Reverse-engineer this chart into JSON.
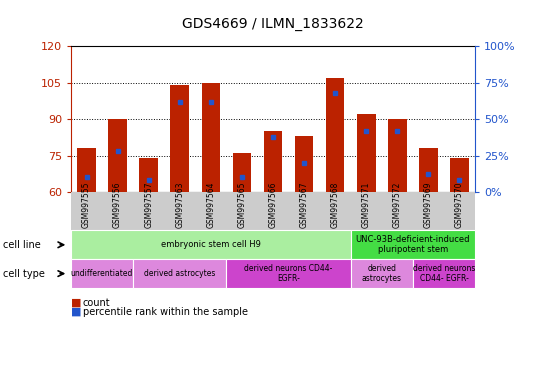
{
  "title": "GDS4669 / ILMN_1833622",
  "samples": [
    "GSM997555",
    "GSM997556",
    "GSM997557",
    "GSM997563",
    "GSM997564",
    "GSM997565",
    "GSM997566",
    "GSM997567",
    "GSM997568",
    "GSM997571",
    "GSM997572",
    "GSM997569",
    "GSM997570"
  ],
  "counts": [
    78,
    90,
    74,
    104,
    105,
    76,
    85,
    83,
    107,
    92,
    90,
    78,
    74
  ],
  "percentiles": [
    10,
    28,
    8,
    62,
    62,
    10,
    38,
    20,
    68,
    42,
    42,
    12,
    8
  ],
  "ylim_left": [
    60,
    120
  ],
  "yticks_left": [
    60,
    75,
    90,
    105,
    120
  ],
  "ylim_right": [
    0,
    100
  ],
  "yticks_right": [
    0,
    25,
    50,
    75,
    100
  ],
  "bar_color": "#bb2200",
  "dot_color": "#2255cc",
  "bar_bottom": 60,
  "cell_line_groups": [
    {
      "label": "embryonic stem cell H9",
      "start": 0,
      "end": 9,
      "color": "#aaeea0"
    },
    {
      "label": "UNC-93B-deficient-induced\npluripotent stem",
      "start": 9,
      "end": 13,
      "color": "#44dd44"
    }
  ],
  "cell_type_groups": [
    {
      "label": "undifferentiated",
      "start": 0,
      "end": 2,
      "color": "#dd88dd"
    },
    {
      "label": "derived astrocytes",
      "start": 2,
      "end": 5,
      "color": "#dd88dd"
    },
    {
      "label": "derived neurons CD44-\nEGFR-",
      "start": 5,
      "end": 9,
      "color": "#cc44cc"
    },
    {
      "label": "derived\nastrocytes",
      "start": 9,
      "end": 11,
      "color": "#dd88dd"
    },
    {
      "label": "derived neurons\nCD44- EGFR-",
      "start": 11,
      "end": 13,
      "color": "#cc44cc"
    }
  ],
  "legend_count_color": "#bb2200",
  "legend_pct_color": "#2255cc",
  "tick_bg_color": "#cccccc",
  "fig_bg": "#ffffff"
}
